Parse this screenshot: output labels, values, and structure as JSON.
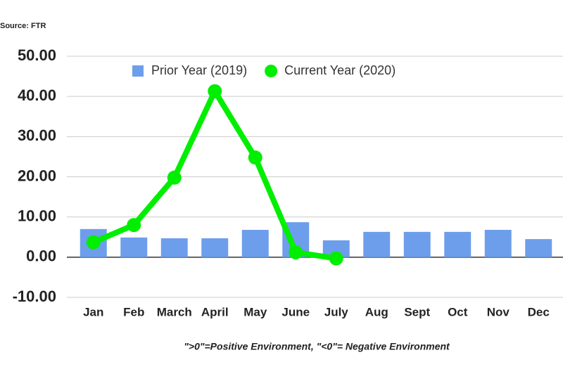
{
  "chart_data": {
    "type": "bar",
    "source": "Source: FTR",
    "footnote": "\">0\"=Positive Environment, \"<0\"= Negative Environment",
    "categories": [
      "Jan",
      "Feb",
      "March",
      "April",
      "May",
      "June",
      "July",
      "Aug",
      "Sept",
      "Oct",
      "Nov",
      "Dec"
    ],
    "series": [
      {
        "name": "Prior Year (2019)",
        "type": "bar",
        "color": "#6d9eeb",
        "values": [
          7.0,
          4.9,
          4.7,
          4.7,
          6.8,
          8.7,
          4.2,
          6.3,
          6.3,
          6.3,
          6.8,
          4.5
        ]
      },
      {
        "name": "Current Year (2020)",
        "type": "line",
        "color": "#00ee00",
        "values": [
          3.7,
          8.0,
          19.8,
          41.3,
          24.8,
          1.2,
          -0.3,
          null,
          null,
          null,
          null,
          null
        ]
      }
    ],
    "ylim": [
      -10,
      50
    ],
    "yticks": [
      {
        "value": -10,
        "label": "-10.00"
      },
      {
        "value": 0,
        "label": "0.00"
      },
      {
        "value": 10,
        "label": "10.00"
      },
      {
        "value": 20,
        "label": "20.00"
      },
      {
        "value": 30,
        "label": "30.00"
      },
      {
        "value": 40,
        "label": "40.00"
      },
      {
        "value": 50,
        "label": "50.00"
      }
    ],
    "grid": true,
    "legend": "top"
  }
}
